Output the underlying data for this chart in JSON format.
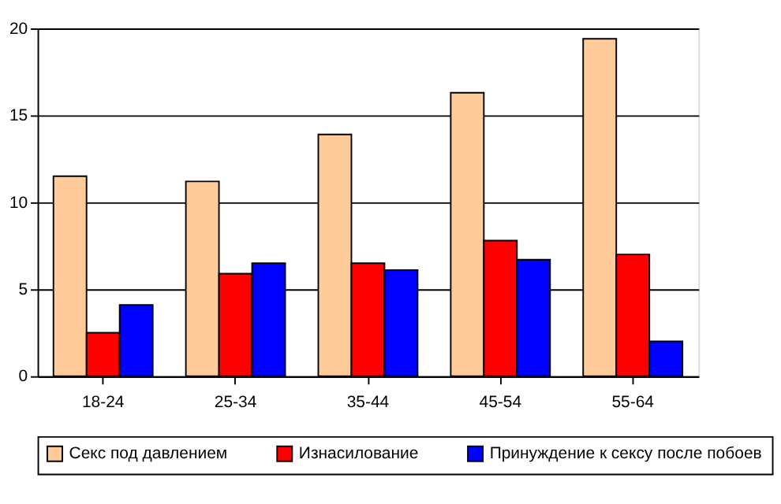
{
  "chart_data": {
    "type": "bar",
    "categories": [
      "18-24",
      "25-34",
      "35-44",
      "45-54",
      "55-64"
    ],
    "series": [
      {
        "name": "Секс под давлением",
        "color": "#ffcc99",
        "values": [
          11.5,
          11.2,
          13.9,
          16.3,
          19.4
        ]
      },
      {
        "name": "Изнасилование",
        "color": "#ff0000",
        "values": [
          2.5,
          5.9,
          6.5,
          7.8,
          7.0
        ]
      },
      {
        "name": "Принуждение к сексу после побоев",
        "color": "#0000ff",
        "values": [
          4.1,
          6.5,
          6.1,
          6.7,
          2.0
        ]
      }
    ],
    "ylim": [
      0,
      20
    ],
    "yticks": [
      0,
      5,
      10,
      15,
      20
    ],
    "grid": "y",
    "legend": "bottom"
  }
}
